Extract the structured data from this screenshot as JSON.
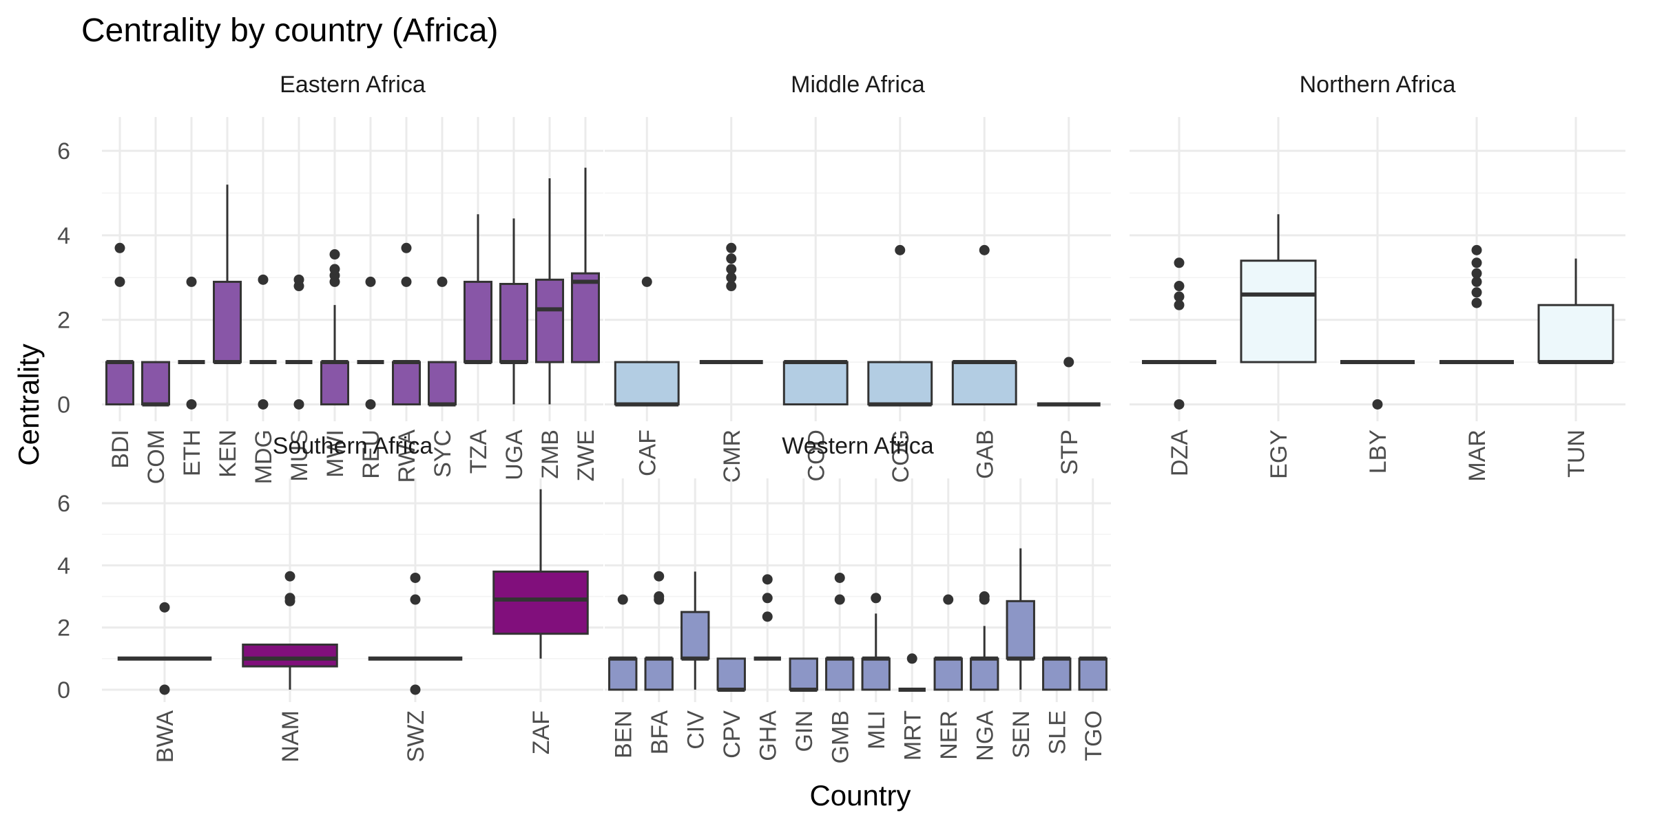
{
  "chart_data": {
    "type": "boxplot",
    "title": "Centrality by country (Africa)",
    "xlabel": "Country",
    "ylabel": "Centrality",
    "ylim": [
      -0.4,
      6.8
    ],
    "yticks": [
      0,
      2,
      4,
      6
    ],
    "grid": true,
    "legend": "none",
    "panels": [
      {
        "name": "Eastern Africa",
        "color": "#8856a7",
        "boxes": [
          {
            "category": "BDI",
            "lower": 0,
            "q1": 0,
            "median": 1,
            "q3": 1,
            "upper": 1,
            "outliers": [
              2.9,
              3.7
            ]
          },
          {
            "category": "COM",
            "lower": 0,
            "q1": 0,
            "median": 0,
            "q3": 1,
            "upper": 1,
            "outliers": []
          },
          {
            "category": "ETH",
            "lower": 1,
            "q1": 1,
            "median": 1,
            "q3": 1,
            "upper": 1,
            "outliers": [
              0,
              2.9
            ]
          },
          {
            "category": "KEN",
            "lower": 1,
            "q1": 1,
            "median": 1,
            "q3": 2.9,
            "upper": 5.2,
            "outliers": []
          },
          {
            "category": "MDG",
            "lower": 1,
            "q1": 1,
            "median": 1,
            "q3": 1,
            "upper": 1,
            "outliers": [
              0,
              2.95
            ]
          },
          {
            "category": "MUS",
            "lower": 1,
            "q1": 1,
            "median": 1,
            "q3": 1,
            "upper": 1,
            "outliers": [
              0,
              2.8,
              2.95
            ]
          },
          {
            "category": "MWI",
            "lower": 0,
            "q1": 0,
            "median": 1,
            "q3": 1,
            "upper": 2.35,
            "outliers": [
              2.9,
              3.05,
              3.2,
              3.55
            ]
          },
          {
            "category": "REU",
            "lower": 1,
            "q1": 1,
            "median": 1,
            "q3": 1,
            "upper": 1,
            "outliers": [
              0,
              2.9
            ]
          },
          {
            "category": "RWA",
            "lower": 0,
            "q1": 0,
            "median": 1,
            "q3": 1,
            "upper": 1,
            "outliers": [
              2.9,
              3.7
            ]
          },
          {
            "category": "SYC",
            "lower": 0,
            "q1": 0,
            "median": 0,
            "q3": 1,
            "upper": 1,
            "outliers": [
              2.9
            ]
          },
          {
            "category": "TZA",
            "lower": 1,
            "q1": 1,
            "median": 1,
            "q3": 2.9,
            "upper": 4.5,
            "outliers": []
          },
          {
            "category": "UGA",
            "lower": 0,
            "q1": 1,
            "median": 1,
            "q3": 2.85,
            "upper": 4.4,
            "outliers": []
          },
          {
            "category": "ZMB",
            "lower": 0,
            "q1": 1,
            "median": 2.25,
            "q3": 2.95,
            "upper": 5.35,
            "outliers": []
          },
          {
            "category": "ZWE",
            "lower": 1,
            "q1": 1,
            "median": 2.9,
            "q3": 3.1,
            "upper": 5.6,
            "outliers": []
          }
        ]
      },
      {
        "name": "Middle Africa",
        "color": "#b3cde3",
        "boxes": [
          {
            "category": "CAF",
            "lower": 0,
            "q1": 0,
            "median": 0,
            "q3": 1,
            "upper": 1,
            "outliers": [
              2.9
            ]
          },
          {
            "category": "CMR",
            "lower": 1,
            "q1": 1,
            "median": 1,
            "q3": 1,
            "upper": 1,
            "outliers": [
              2.8,
              3.0,
              3.2,
              3.45,
              3.7
            ]
          },
          {
            "category": "COD",
            "lower": 0,
            "q1": 0,
            "median": 1,
            "q3": 1,
            "upper": 1,
            "outliers": []
          },
          {
            "category": "COG",
            "lower": 0,
            "q1": 0,
            "median": 0,
            "q3": 1,
            "upper": 1,
            "outliers": [
              3.65
            ]
          },
          {
            "category": "GAB",
            "lower": 0,
            "q1": 0,
            "median": 1,
            "q3": 1,
            "upper": 1,
            "outliers": [
              3.65
            ]
          },
          {
            "category": "STP",
            "lower": 0,
            "q1": 0,
            "median": 0,
            "q3": 0,
            "upper": 0,
            "outliers": [
              1
            ]
          }
        ]
      },
      {
        "name": "Northern Africa",
        "color": "#edf8fb",
        "boxes": [
          {
            "category": "DZA",
            "lower": 1,
            "q1": 1,
            "median": 1,
            "q3": 1,
            "upper": 1,
            "outliers": [
              0,
              2.35,
              2.55,
              2.8,
              3.35
            ]
          },
          {
            "category": "EGY",
            "lower": 1,
            "q1": 1,
            "median": 2.6,
            "q3": 3.4,
            "upper": 4.5,
            "outliers": []
          },
          {
            "category": "LBY",
            "lower": 1,
            "q1": 1,
            "median": 1,
            "q3": 1,
            "upper": 1,
            "outliers": [
              0
            ]
          },
          {
            "category": "MAR",
            "lower": 1,
            "q1": 1,
            "median": 1,
            "q3": 1,
            "upper": 1,
            "outliers": [
              2.4,
              2.65,
              2.9,
              3.1,
              3.35,
              3.65
            ]
          },
          {
            "category": "TUN",
            "lower": 1,
            "q1": 1,
            "median": 1,
            "q3": 2.35,
            "upper": 3.45,
            "outliers": []
          }
        ]
      },
      {
        "name": "Southern Africa",
        "color": "#810f7c",
        "boxes": [
          {
            "category": "BWA",
            "lower": 1,
            "q1": 1,
            "median": 1,
            "q3": 1,
            "upper": 1,
            "outliers": [
              0,
              2.65
            ]
          },
          {
            "category": "NAM",
            "lower": 0,
            "q1": 0.75,
            "median": 1,
            "q3": 1.45,
            "upper": 1.45,
            "outliers": [
              2.85,
              2.95,
              3.65
            ]
          },
          {
            "category": "SWZ",
            "lower": 1,
            "q1": 1,
            "median": 1,
            "q3": 1,
            "upper": 1,
            "outliers": [
              0,
              2.9,
              3.6
            ]
          },
          {
            "category": "ZAF",
            "lower": 1,
            "q1": 1.8,
            "median": 2.9,
            "q3": 3.8,
            "upper": 6.45,
            "outliers": []
          }
        ]
      },
      {
        "name": "Western Africa",
        "color": "#8c96c6",
        "boxes": [
          {
            "category": "BEN",
            "lower": 0,
            "q1": 0,
            "median": 1,
            "q3": 1,
            "upper": 1,
            "outliers": [
              2.9
            ]
          },
          {
            "category": "BFA",
            "lower": 0,
            "q1": 0,
            "median": 1,
            "q3": 1,
            "upper": 1,
            "outliers": [
              2.9,
              3.0,
              3.65
            ]
          },
          {
            "category": "CIV",
            "lower": 0,
            "q1": 1,
            "median": 1,
            "q3": 2.5,
            "upper": 3.8,
            "outliers": []
          },
          {
            "category": "CPV",
            "lower": 0,
            "q1": 0,
            "median": 0,
            "q3": 1,
            "upper": 1,
            "outliers": []
          },
          {
            "category": "GHA",
            "lower": 1,
            "q1": 1,
            "median": 1,
            "q3": 1,
            "upper": 1,
            "outliers": [
              2.35,
              2.95,
              3.55
            ]
          },
          {
            "category": "GIN",
            "lower": 0,
            "q1": 0,
            "median": 0,
            "q3": 1,
            "upper": 1,
            "outliers": []
          },
          {
            "category": "GMB",
            "lower": 0,
            "q1": 0,
            "median": 1,
            "q3": 1,
            "upper": 1,
            "outliers": [
              2.9,
              3.6
            ]
          },
          {
            "category": "MLI",
            "lower": 0,
            "q1": 0,
            "median": 1,
            "q3": 1,
            "upper": 2.45,
            "outliers": [
              2.95
            ]
          },
          {
            "category": "MRT",
            "lower": 0,
            "q1": 0,
            "median": 0,
            "q3": 0,
            "upper": 0,
            "outliers": [
              1
            ]
          },
          {
            "category": "NER",
            "lower": 0,
            "q1": 0,
            "median": 1,
            "q3": 1,
            "upper": 1,
            "outliers": [
              2.9
            ]
          },
          {
            "category": "NGA",
            "lower": 0,
            "q1": 0,
            "median": 1,
            "q3": 1,
            "upper": 2.05,
            "outliers": [
              2.9,
              3.0
            ]
          },
          {
            "category": "SEN",
            "lower": 0,
            "q1": 1,
            "median": 1,
            "q3": 2.85,
            "upper": 4.55,
            "outliers": []
          },
          {
            "category": "SLE",
            "lower": 0,
            "q1": 0,
            "median": 1,
            "q3": 1,
            "upper": 1,
            "outliers": []
          },
          {
            "category": "TGO",
            "lower": 0,
            "q1": 0,
            "median": 1,
            "q3": 1,
            "upper": 1,
            "outliers": []
          }
        ]
      }
    ]
  }
}
